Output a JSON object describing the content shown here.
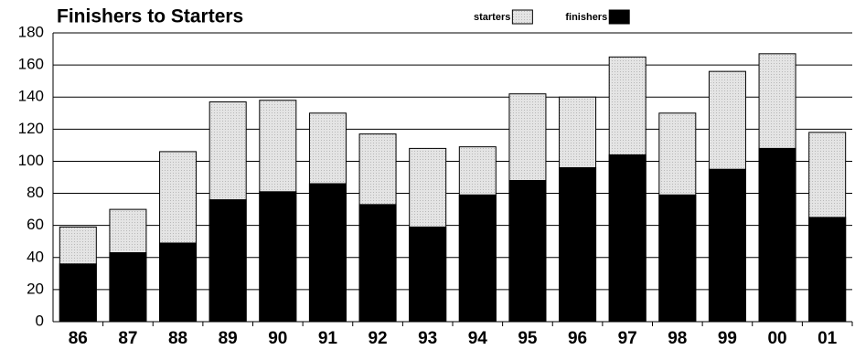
{
  "chart_data": {
    "type": "bar",
    "title": "Finishers to Starters",
    "categories": [
      "86",
      "87",
      "88",
      "89",
      "90",
      "91",
      "92",
      "93",
      "94",
      "95",
      "96",
      "97",
      "98",
      "99",
      "00",
      "01"
    ],
    "series": [
      {
        "name": "starters",
        "color": "#dcdcdc",
        "values": [
          59,
          70,
          106,
          137,
          138,
          130,
          117,
          108,
          109,
          142,
          140,
          165,
          130,
          156,
          167,
          118
        ]
      },
      {
        "name": "finishers",
        "color": "#000000",
        "values": [
          36,
          43,
          49,
          76,
          81,
          86,
          73,
          59,
          79,
          88,
          96,
          104,
          79,
          95,
          108,
          65
        ]
      }
    ],
    "ylim": [
      0,
      180
    ],
    "yticks": [
      0,
      20,
      40,
      60,
      80,
      100,
      120,
      140,
      160,
      180
    ],
    "grid": true
  }
}
